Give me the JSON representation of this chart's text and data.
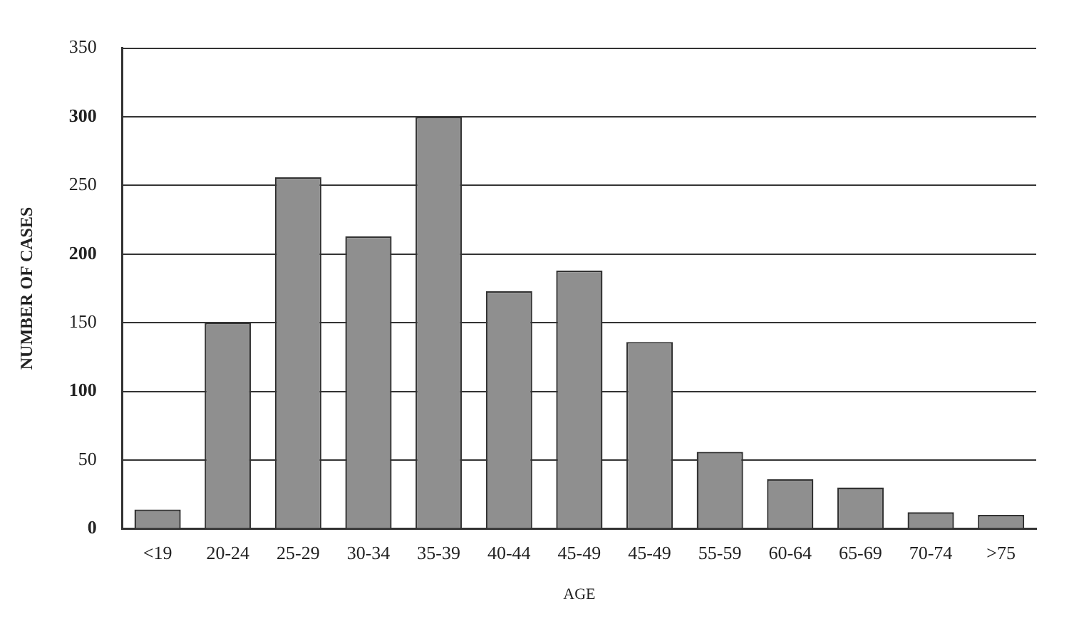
{
  "chart_data": {
    "type": "bar",
    "xlabel": "AGE",
    "ylabel": "NUMBER OF CASES",
    "categories": [
      "<19",
      "20-24",
      "25-29",
      "30-34",
      "35-39",
      "40-44",
      "45-49",
      "45-49",
      "55-59",
      "60-64",
      "65-69",
      "70-74",
      ">75"
    ],
    "values": [
      14,
      150,
      256,
      213,
      300,
      173,
      188,
      136,
      56,
      36,
      30,
      12,
      10
    ],
    "color": "#8f8f8f",
    "ylim": [
      0,
      350
    ],
    "yticks": [
      0,
      50,
      100,
      150,
      200,
      250,
      300,
      350
    ],
    "grid": "y"
  }
}
